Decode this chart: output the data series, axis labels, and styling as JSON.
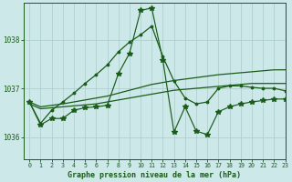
{
  "title": "Graphe pression niveau de la mer (hPa)",
  "background_color": "#cce8e8",
  "grid_color": "#aacccc",
  "line_color": "#1a5c1a",
  "xlim": [
    -0.5,
    23
  ],
  "ylim": [
    1035.55,
    1038.75
  ],
  "yticks": [
    1036,
    1037,
    1038
  ],
  "xticks": [
    0,
    1,
    2,
    3,
    4,
    5,
    6,
    7,
    8,
    9,
    10,
    11,
    12,
    13,
    14,
    15,
    16,
    17,
    18,
    19,
    20,
    21,
    22,
    23
  ],
  "hours": [
    0,
    1,
    2,
    3,
    4,
    5,
    6,
    7,
    8,
    9,
    10,
    11,
    12,
    13,
    14,
    15,
    16,
    17,
    18,
    19,
    20,
    21,
    22,
    23
  ],
  "line_smooth1": [
    1036.72,
    1036.62,
    1036.65,
    1036.68,
    1036.72,
    1036.76,
    1036.8,
    1036.84,
    1036.9,
    1036.96,
    1037.02,
    1037.08,
    1037.12,
    1037.16,
    1037.19,
    1037.22,
    1037.25,
    1037.28,
    1037.3,
    1037.32,
    1037.34,
    1037.36,
    1037.38,
    1037.38
  ],
  "line_smooth2": [
    1036.68,
    1036.58,
    1036.6,
    1036.62,
    1036.64,
    1036.66,
    1036.68,
    1036.72,
    1036.76,
    1036.8,
    1036.84,
    1036.88,
    1036.92,
    1036.96,
    1036.98,
    1037.0,
    1037.02,
    1037.04,
    1037.06,
    1037.08,
    1037.1,
    1037.1,
    1037.1,
    1037.1
  ],
  "line_dotted": [
    1036.72,
    1036.28,
    1036.55,
    1036.72,
    1036.9,
    1037.1,
    1037.28,
    1037.48,
    1037.75,
    1037.95,
    1038.1,
    1038.28,
    1037.65,
    1037.15,
    1036.8,
    1036.68,
    1036.72,
    1037.0,
    1037.05,
    1037.05,
    1037.02,
    1037.0,
    1037.0,
    1036.95
  ],
  "line_volatile": [
    1036.72,
    1036.25,
    1036.38,
    1036.38,
    1036.55,
    1036.6,
    1036.62,
    1036.65,
    1037.3,
    1037.72,
    1038.6,
    1038.65,
    1037.58,
    1036.1,
    1036.62,
    1036.12,
    1036.05,
    1036.52,
    1036.62,
    1036.68,
    1036.72,
    1036.75,
    1036.78,
    1036.78
  ]
}
